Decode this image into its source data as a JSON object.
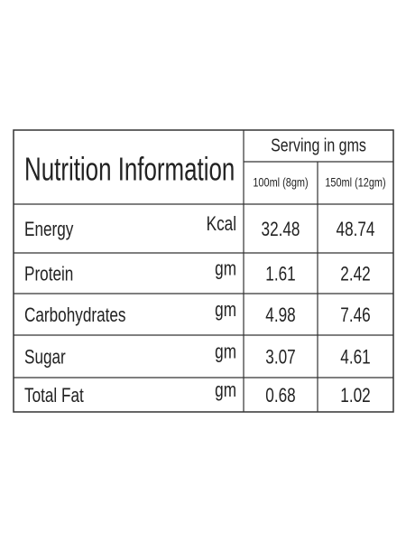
{
  "table": {
    "title": "Nutrition Information",
    "serving_header": "Serving in gms",
    "columns": [
      "100ml (8gm)",
      "150ml (12gm)"
    ],
    "rows": [
      [
        "Energy",
        "Kcal",
        "32.48",
        "48.74"
      ],
      [
        "Protein",
        "gm",
        "1.61",
        "2.42"
      ],
      [
        "Carbohydrates",
        "gm",
        "4.98",
        "7.46"
      ],
      [
        "Sugar",
        "gm",
        "3.07",
        "4.61"
      ],
      [
        "Total Fat",
        "gm",
        "0.68",
        "1.02"
      ]
    ]
  }
}
